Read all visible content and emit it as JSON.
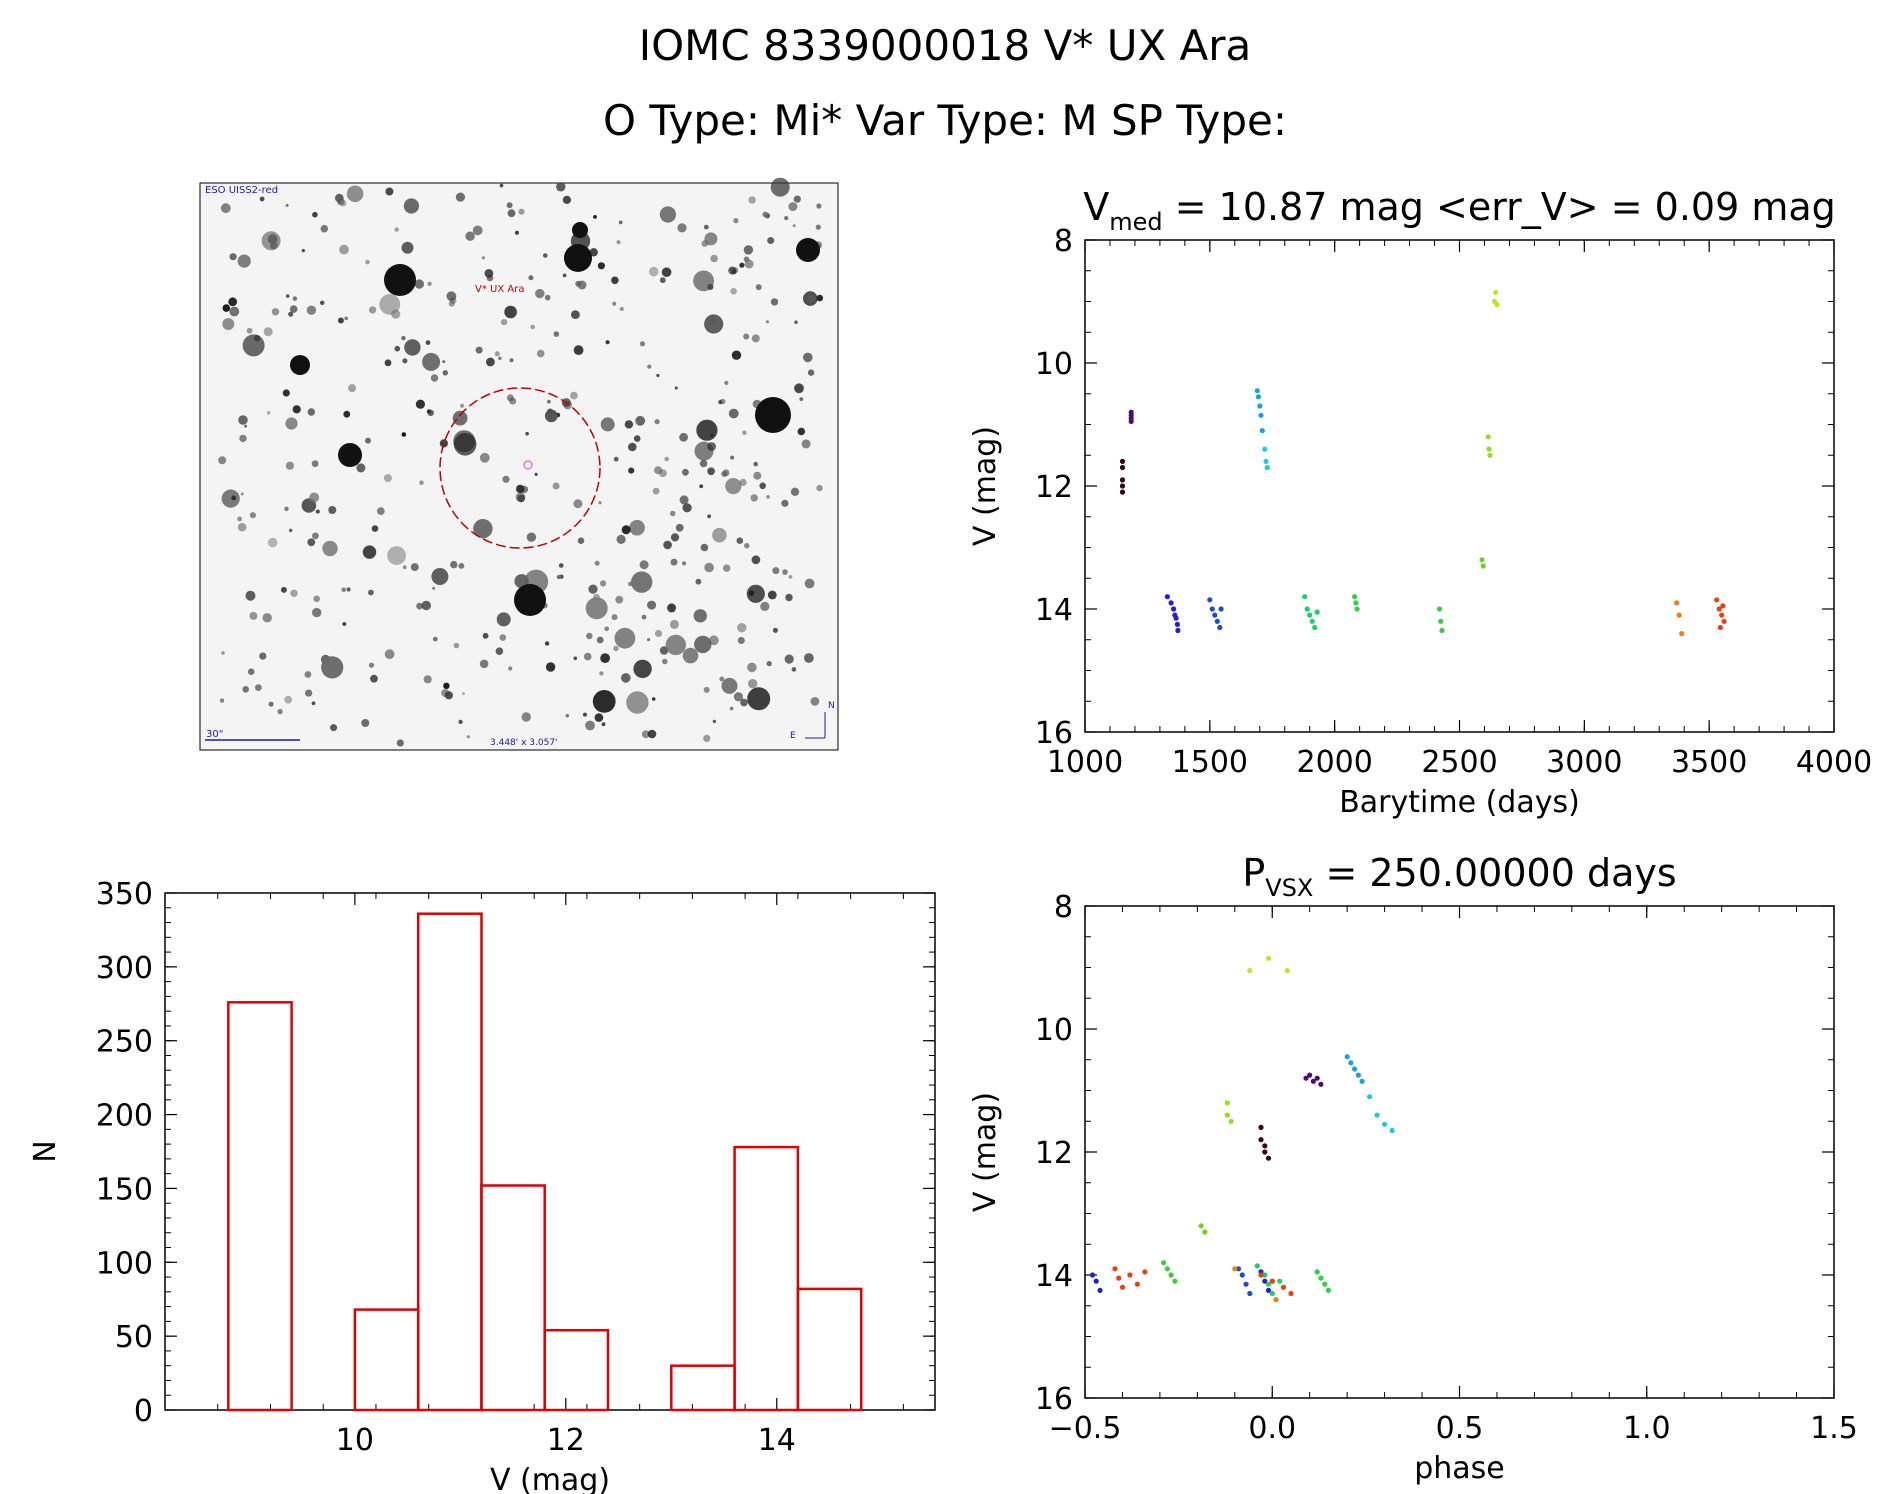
{
  "header": {
    "title": "IOMC 8339000018   V* UX Ara",
    "types_line": "O Type: Mi*  Var Type: M  SP Type:"
  },
  "finder": {
    "survey_label": "ESO UISS2-red",
    "target_label": "V* UX Ara",
    "scale_label": "30\"",
    "size_label": "3.448' x 3.057'",
    "north_label": "N",
    "east_label": "E"
  },
  "colors": {
    "hist_bar": "#e00000",
    "axis": "#000000",
    "finder_circle": "#c00000",
    "finder_text": "#1a1aa0"
  },
  "chart_data": [
    {
      "id": "light_curve",
      "type": "scatter",
      "title_parts": {
        "prefix": "V",
        "sub": "med",
        "suffix": " = 10.87 mag <err_V> = 0.09 mag"
      },
      "xlabel": "Barytime (days)",
      "ylabel": "V (mag)",
      "xlim": [
        1000,
        4000
      ],
      "ylim": [
        16,
        8
      ],
      "xticks": [
        1000,
        1500,
        2000,
        2500,
        3000,
        3500,
        4000
      ],
      "yticks": [
        8,
        10,
        12,
        14,
        16
      ],
      "groups": [
        {
          "color": "#3a0020",
          "x": [
            1150,
            1150,
            1150,
            1150,
            1150
          ],
          "y": [
            11.6,
            11.7,
            11.9,
            12.0,
            12.1
          ]
        },
        {
          "color": "#4a1070",
          "x": [
            1185,
            1185,
            1185,
            1185
          ],
          "y": [
            10.8,
            10.85,
            10.9,
            10.95
          ]
        },
        {
          "color": "#2020d0",
          "x": [
            1330,
            1345,
            1355,
            1360,
            1365,
            1370,
            1372
          ],
          "y": [
            13.8,
            13.9,
            14.0,
            14.1,
            14.15,
            14.25,
            14.35
          ]
        },
        {
          "color": "#1a4ad8",
          "x": [
            1500,
            1510,
            1520,
            1530,
            1540,
            1545
          ],
          "y": [
            13.85,
            14.0,
            14.1,
            14.2,
            14.3,
            14.0
          ]
        },
        {
          "color": "#1aa0e0",
          "x": [
            1690,
            1695,
            1700,
            1705,
            1710
          ],
          "y": [
            10.45,
            10.55,
            10.7,
            10.85,
            11.1
          ]
        },
        {
          "color": "#20c8e8",
          "x": [
            1720,
            1725,
            1730
          ],
          "y": [
            11.4,
            11.6,
            11.7
          ]
        },
        {
          "color": "#18d070",
          "x": [
            1880,
            1890,
            1900,
            1910,
            1920,
            1930
          ],
          "y": [
            13.8,
            14.0,
            14.1,
            14.2,
            14.3,
            14.05
          ]
        },
        {
          "color": "#30d040",
          "x": [
            2080,
            2085,
            2090
          ],
          "y": [
            13.8,
            13.9,
            14.0
          ]
        },
        {
          "color": "#40c840",
          "x": [
            2420,
            2425,
            2430
          ],
          "y": [
            14.0,
            14.2,
            14.35
          ]
        },
        {
          "color": "#70d020",
          "x": [
            2590,
            2595
          ],
          "y": [
            13.2,
            13.3
          ]
        },
        {
          "color": "#90e020",
          "x": [
            2615,
            2618,
            2622
          ],
          "y": [
            11.2,
            11.4,
            11.5
          ]
        },
        {
          "color": "#c8e020",
          "x": [
            2640,
            2645,
            2650
          ],
          "y": [
            9.0,
            8.85,
            9.05
          ]
        },
        {
          "color": "#f08010",
          "x": [
            3370,
            3380,
            3390
          ],
          "y": [
            13.9,
            14.1,
            14.4
          ]
        },
        {
          "color": "#e84010",
          "x": [
            3530,
            3540,
            3550,
            3560,
            3545,
            3555
          ],
          "y": [
            13.85,
            14.0,
            14.1,
            14.2,
            14.3,
            13.95
          ]
        }
      ]
    },
    {
      "id": "histogram",
      "type": "bar",
      "title": "",
      "xlabel": "V (mag)",
      "ylabel": "N",
      "xlim": [
        8.2,
        15.5
      ],
      "ylim": [
        0,
        350
      ],
      "xticks": [
        10,
        12,
        14
      ],
      "yticks": [
        0,
        50,
        100,
        150,
        200,
        250,
        300,
        350
      ],
      "bin_edges": [
        8.8,
        9.4,
        10.0,
        10.6,
        11.2,
        11.8,
        12.4,
        13.0,
        13.6,
        14.2,
        14.8
      ],
      "values": [
        276,
        0,
        68,
        336,
        152,
        54,
        0,
        30,
        178,
        82
      ]
    },
    {
      "id": "phase_curve",
      "type": "scatter",
      "title_parts": {
        "prefix": "P",
        "sub": "VSX",
        "suffix": " = 250.00000 days"
      },
      "xlabel": "phase",
      "ylabel": "V (mag)",
      "xlim": [
        -0.5,
        1.5
      ],
      "ylim": [
        16,
        8
      ],
      "xticks": [
        -0.5,
        0.0,
        0.5,
        1.0,
        1.5
      ],
      "yticks": [
        8,
        10,
        12,
        14,
        16
      ],
      "groups": [
        {
          "color": "#3a0020",
          "x": [
            -0.03,
            -0.03,
            -0.02,
            -0.02,
            -0.01
          ],
          "y": [
            11.6,
            11.8,
            11.9,
            12.0,
            12.1
          ]
        },
        {
          "color": "#4a1070",
          "x": [
            0.09,
            0.1,
            0.11,
            0.12,
            0.13
          ],
          "y": [
            10.8,
            10.75,
            10.85,
            10.8,
            10.9
          ]
        },
        {
          "color": "#2020d0",
          "x": [
            -0.48,
            -0.47,
            -0.46,
            -0.03,
            -0.02,
            -0.01
          ],
          "y": [
            14.0,
            14.1,
            14.25,
            13.95,
            14.1,
            14.25
          ]
        },
        {
          "color": "#1a4ad8",
          "x": [
            -0.09,
            -0.08,
            -0.07,
            -0.06
          ],
          "y": [
            13.9,
            14.0,
            14.15,
            14.3
          ]
        },
        {
          "color": "#1aa0e0",
          "x": [
            0.2,
            0.21,
            0.22,
            0.23,
            0.24
          ],
          "y": [
            10.45,
            10.55,
            10.65,
            10.75,
            10.85
          ]
        },
        {
          "color": "#20c8e8",
          "x": [
            0.26,
            0.28,
            0.3,
            0.32
          ],
          "y": [
            11.1,
            11.4,
            11.55,
            11.65
          ]
        },
        {
          "color": "#18d070",
          "x": [
            -0.04,
            -0.02,
            -0.01,
            0.0,
            0.02
          ],
          "y": [
            13.85,
            14.0,
            14.15,
            14.3,
            14.1
          ]
        },
        {
          "color": "#30d040",
          "x": [
            0.12,
            0.13,
            0.14,
            0.15
          ],
          "y": [
            13.95,
            14.05,
            14.15,
            14.25
          ]
        },
        {
          "color": "#40c840",
          "x": [
            -0.29,
            -0.28,
            -0.27,
            -0.26
          ],
          "y": [
            13.8,
            13.9,
            14.0,
            14.1
          ]
        },
        {
          "color": "#70d020",
          "x": [
            -0.19,
            -0.18
          ],
          "y": [
            13.2,
            13.3
          ]
        },
        {
          "color": "#90e020",
          "x": [
            -0.12,
            -0.12,
            -0.11
          ],
          "y": [
            11.2,
            11.4,
            11.5
          ]
        },
        {
          "color": "#c8e020",
          "x": [
            -0.06,
            -0.01,
            0.04
          ],
          "y": [
            9.05,
            8.85,
            9.05
          ]
        },
        {
          "color": "#f08010",
          "x": [
            -0.1,
            0.0,
            0.01
          ],
          "y": [
            13.9,
            14.1,
            14.4
          ]
        },
        {
          "color": "#e84010",
          "x": [
            -0.42,
            -0.41,
            -0.4,
            -0.38,
            -0.36,
            -0.34,
            -0.03,
            0.0,
            0.03,
            0.05
          ],
          "y": [
            13.9,
            14.05,
            14.2,
            14.0,
            14.15,
            13.95,
            14.0,
            14.1,
            14.2,
            14.3
          ]
        }
      ]
    }
  ]
}
